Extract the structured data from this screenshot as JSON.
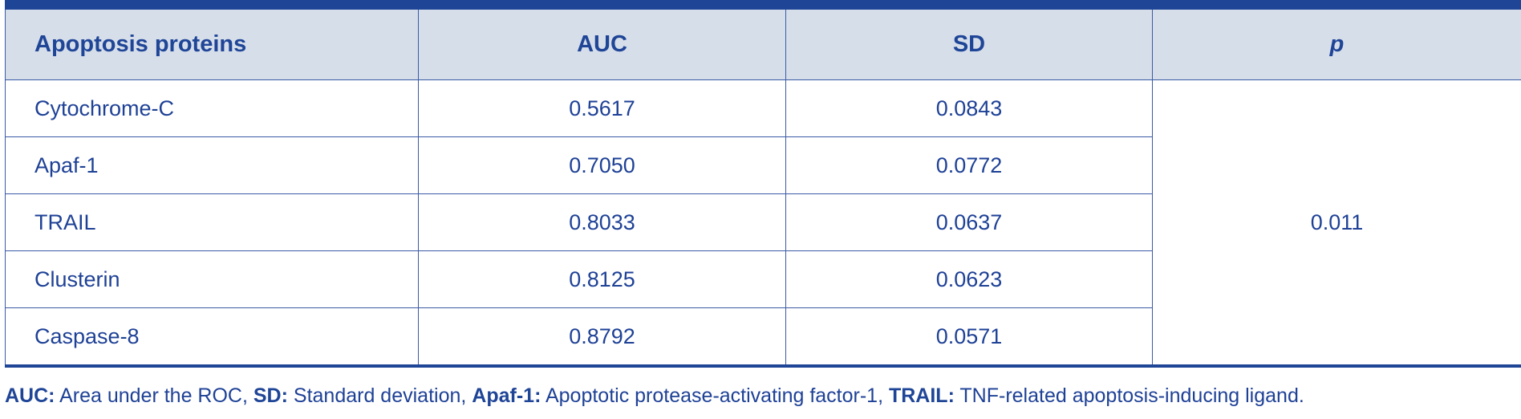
{
  "table": {
    "headers": [
      "Apoptosis proteins",
      "AUC",
      "SD",
      "p"
    ],
    "rows": [
      [
        "Cytochrome-C",
        "0.5617",
        "0.0843"
      ],
      [
        "Apaf-1",
        "0.7050",
        "0.0772"
      ],
      [
        "TRAIL",
        "0.8033",
        "0.0637"
      ],
      [
        "Clusterin",
        "0.8125",
        "0.0623"
      ],
      [
        "Caspase-8",
        "0.8792",
        "0.0571"
      ]
    ],
    "p_value": "0.011"
  },
  "footnote": [
    {
      "term": "AUC:",
      "definition": "Area under the ROC,"
    },
    {
      "term": "SD:",
      "definition": "Standard deviation,"
    },
    {
      "term": "Apaf-1:",
      "definition": "Apoptotic protease-activating factor-1,"
    },
    {
      "term": "TRAIL:",
      "definition": "TNF-related apoptosis-inducing ligand."
    }
  ]
}
